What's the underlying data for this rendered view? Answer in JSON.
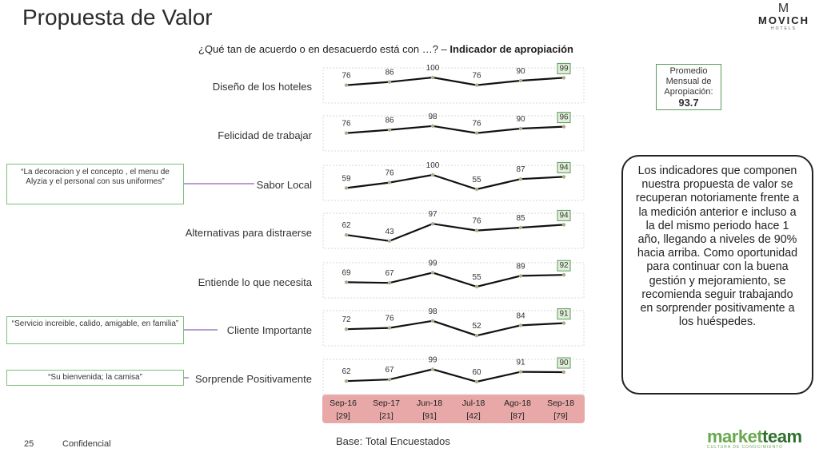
{
  "header": {
    "title": "Propuesta de Valor",
    "subtitle_question": "¿Qué tan de acuerdo o en desacuerdo está con …? –",
    "subtitle_indicator": "Indicador de apropiación"
  },
  "brand": {
    "name": "MOVICH",
    "sub": "HOTELS",
    "mark": "M"
  },
  "average_box": {
    "label_line1": "Promedio",
    "label_line2": "Mensual de",
    "label_line3": "Apropiación:",
    "value": "93.7"
  },
  "insight_text": "Los indicadores que componen nuestra propuesta de valor se recuperan notoriamente frente a la medición anterior e incluso a la del mismo periodo hace 1 año, llegando a niveles de 90% hacia arriba. Como oportunidad para continuar con la buena gestión y mejoramiento, se recomienda seguir trabajando en sorprender positivamente a los huéspedes.",
  "quotes": [
    {
      "text": "“La decoracion y el concepto , el menu de Alyzia y el personal con sus uniformes”"
    },
    {
      "text": "“Servicio increible, calido, amigable, en familia”"
    },
    {
      "text": "“Su bienvenida; la camisa”"
    }
  ],
  "chart_data": {
    "type": "line",
    "title": "¿Qué tan de acuerdo o en desacuerdo está con …? – Indicador de apropiación",
    "categories": [
      "Sep-16",
      "Sep-17",
      "Jun-18",
      "Jul-18",
      "Ago-18",
      "Sep-18"
    ],
    "bases": [
      "[29]",
      "[21]",
      "[91]",
      "[42]",
      "[87]",
      "[79]"
    ],
    "series": [
      {
        "name": "Diseño de los hoteles",
        "values": [
          76,
          86,
          100,
          76,
          90,
          99
        ]
      },
      {
        "name": "Felicidad de trabajar",
        "values": [
          76,
          86,
          98,
          76,
          90,
          96
        ]
      },
      {
        "name": "Sabor Local",
        "values": [
          59,
          76,
          100,
          55,
          87,
          94
        ]
      },
      {
        "name": "Alternativas para distraerse",
        "values": [
          62,
          43,
          97,
          76,
          85,
          94
        ]
      },
      {
        "name": "Entiende lo que necesita",
        "values": [
          69,
          67,
          99,
          55,
          89,
          92
        ]
      },
      {
        "name": "Cliente Importante",
        "values": [
          72,
          76,
          98,
          52,
          84,
          91
        ]
      },
      {
        "name": "Sorprende Positivamente",
        "values": [
          62,
          67,
          99,
          60,
          91,
          90
        ]
      }
    ],
    "ylim": [
      0,
      100
    ]
  },
  "footer": {
    "page_number": "25",
    "confidential": "Confidencial",
    "base_note": "Base: Total Encuestados"
  },
  "partner": {
    "name_part1": "market",
    "name_part2": "team",
    "tagline": "CULTURA DE CONOCIMIENTO"
  },
  "colors": {
    "line": "#111111",
    "marker": "#b5a98a",
    "highlight_border": "#5a9a5a",
    "highlight_fill": "#e2efd9",
    "axis_band": "#e8a8a8",
    "quote_border": "#7bbf7b",
    "connector": "#6b3fa0"
  }
}
